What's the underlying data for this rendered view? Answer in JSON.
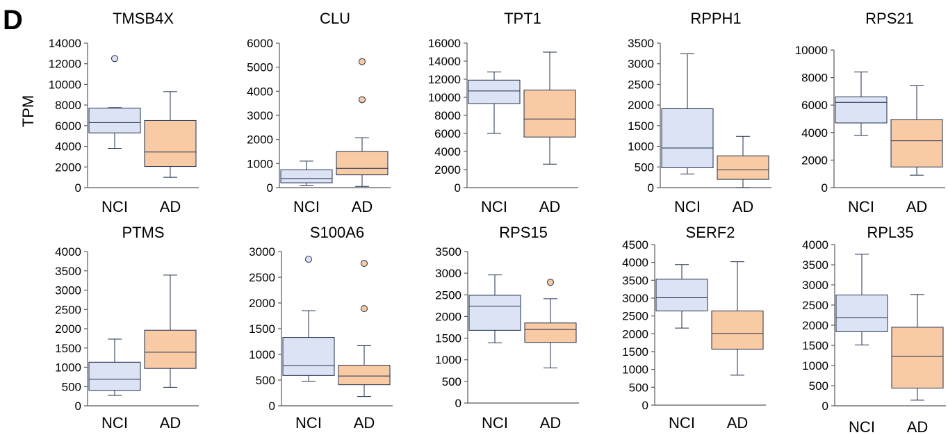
{
  "figure": {
    "panel_letter": "D",
    "ylabel": "TPM"
  },
  "colors": {
    "nci_fill": "#dbe3f4",
    "ad_fill": "#f9cba4",
    "stroke": "#1f2d4d",
    "axis": "#595959"
  },
  "chart_data": [
    {
      "type": "box",
      "title": "TMSB4X",
      "categories": [
        "NCI",
        "AD"
      ],
      "ylim": [
        0,
        14000
      ],
      "yticks": [
        0,
        2000,
        4000,
        6000,
        8000,
        10000,
        12000,
        14000
      ],
      "boxes": [
        {
          "min": 3800,
          "q1": 5300,
          "median": 6300,
          "q3": 7700,
          "max": 7750,
          "outliers": [
            12500
          ]
        },
        {
          "min": 1000,
          "q1": 2050,
          "median": 3450,
          "q3": 6500,
          "max": 9300,
          "outliers": []
        }
      ]
    },
    {
      "type": "box",
      "title": "CLU",
      "categories": [
        "NCI",
        "AD"
      ],
      "ylim": [
        0,
        6000
      ],
      "yticks": [
        0,
        1000,
        2000,
        3000,
        4000,
        5000,
        6000
      ],
      "boxes": [
        {
          "min": 100,
          "q1": 200,
          "median": 380,
          "q3": 740,
          "max": 1100,
          "outliers": []
        },
        {
          "min": 50,
          "q1": 530,
          "median": 800,
          "q3": 1500,
          "max": 2070,
          "outliers": [
            3650,
            5230
          ]
        }
      ]
    },
    {
      "type": "box",
      "title": "TPT1",
      "categories": [
        "NCI",
        "AD"
      ],
      "ylim": [
        0,
        16000
      ],
      "yticks": [
        0,
        2000,
        4000,
        6000,
        8000,
        10000,
        12000,
        14000,
        16000
      ],
      "boxes": [
        {
          "min": 6000,
          "q1": 9300,
          "median": 10700,
          "q3": 11900,
          "max": 12800,
          "outliers": []
        },
        {
          "min": 2600,
          "q1": 5600,
          "median": 7600,
          "q3": 10800,
          "max": 15000,
          "outliers": []
        }
      ]
    },
    {
      "type": "box",
      "title": "RPPH1",
      "categories": [
        "NCI",
        "AD"
      ],
      "ylim": [
        0,
        3500
      ],
      "yticks": [
        0,
        500,
        1000,
        1500,
        2000,
        2500,
        3000,
        3500
      ],
      "boxes": [
        {
          "min": 330,
          "q1": 480,
          "median": 960,
          "q3": 1910,
          "max": 3240,
          "outliers": []
        },
        {
          "min": 0,
          "q1": 200,
          "median": 430,
          "q3": 770,
          "max": 1240,
          "outliers": []
        }
      ]
    },
    {
      "type": "box",
      "title": "RPS21",
      "categories": [
        "NCI",
        "AD"
      ],
      "ylim": [
        0,
        10000
      ],
      "yticks": [
        0,
        2000,
        4000,
        6000,
        8000,
        10000
      ],
      "boxes": [
        {
          "min": 3800,
          "q1": 4700,
          "median": 6200,
          "q3": 6600,
          "max": 8400,
          "outliers": []
        },
        {
          "min": 900,
          "q1": 1500,
          "median": 3400,
          "q3": 4950,
          "max": 7400,
          "outliers": []
        }
      ]
    },
    {
      "type": "box",
      "title": "PTMS",
      "categories": [
        "NCI",
        "AD"
      ],
      "ylim": [
        0,
        4000
      ],
      "yticks": [
        0,
        500,
        1000,
        1500,
        2000,
        2500,
        3000,
        3500,
        4000
      ],
      "boxes": [
        {
          "min": 270,
          "q1": 400,
          "median": 690,
          "q3": 1130,
          "max": 1730,
          "outliers": []
        },
        {
          "min": 480,
          "q1": 970,
          "median": 1390,
          "q3": 1960,
          "max": 3390,
          "outliers": []
        }
      ]
    },
    {
      "type": "box",
      "title": "S100A6",
      "categories": [
        "NCI",
        "AD"
      ],
      "ylim": [
        0,
        3000
      ],
      "yticks": [
        0,
        500,
        1000,
        1500,
        2000,
        2500,
        3000
      ],
      "boxes": [
        {
          "min": 480,
          "q1": 590,
          "median": 780,
          "q3": 1330,
          "max": 1850,
          "outliers": [
            2850
          ]
        },
        {
          "min": 180,
          "q1": 410,
          "median": 580,
          "q3": 790,
          "max": 1170,
          "outliers": [
            1890,
            2770
          ]
        }
      ]
    },
    {
      "type": "box",
      "title": "RPS15",
      "categories": [
        "NCI",
        "AD"
      ],
      "ylim": [
        0,
        3500
      ],
      "yticks": [
        0,
        500,
        1000,
        1500,
        2000,
        2500,
        3000,
        3500
      ],
      "boxes": [
        {
          "min": 1390,
          "q1": 1680,
          "median": 2240,
          "q3": 2490,
          "max": 2960,
          "outliers": []
        },
        {
          "min": 810,
          "q1": 1400,
          "median": 1700,
          "q3": 1850,
          "max": 2410,
          "outliers": [
            2790
          ]
        }
      ]
    },
    {
      "type": "box",
      "title": "SERF2",
      "categories": [
        "NCI",
        "AD"
      ],
      "ylim": [
        0,
        4500
      ],
      "yticks": [
        0,
        500,
        1000,
        1500,
        2000,
        2500,
        3000,
        3500,
        4000,
        4500
      ],
      "boxes": [
        {
          "min": 2160,
          "q1": 2640,
          "median": 3010,
          "q3": 3530,
          "max": 3940,
          "outliers": []
        },
        {
          "min": 840,
          "q1": 1570,
          "median": 2010,
          "q3": 2640,
          "max": 4020,
          "outliers": []
        }
      ]
    },
    {
      "type": "box",
      "title": "RPL35",
      "categories": [
        "NCI",
        "AD"
      ],
      "ylim": [
        0,
        4000
      ],
      "yticks": [
        0,
        500,
        1000,
        1500,
        2000,
        2500,
        3000,
        3500,
        4000
      ],
      "boxes": [
        {
          "min": 1510,
          "q1": 1840,
          "median": 2190,
          "q3": 2750,
          "max": 3760,
          "outliers": []
        },
        {
          "min": 140,
          "q1": 440,
          "median": 1230,
          "q3": 1950,
          "max": 2760,
          "outliers": []
        }
      ]
    }
  ]
}
